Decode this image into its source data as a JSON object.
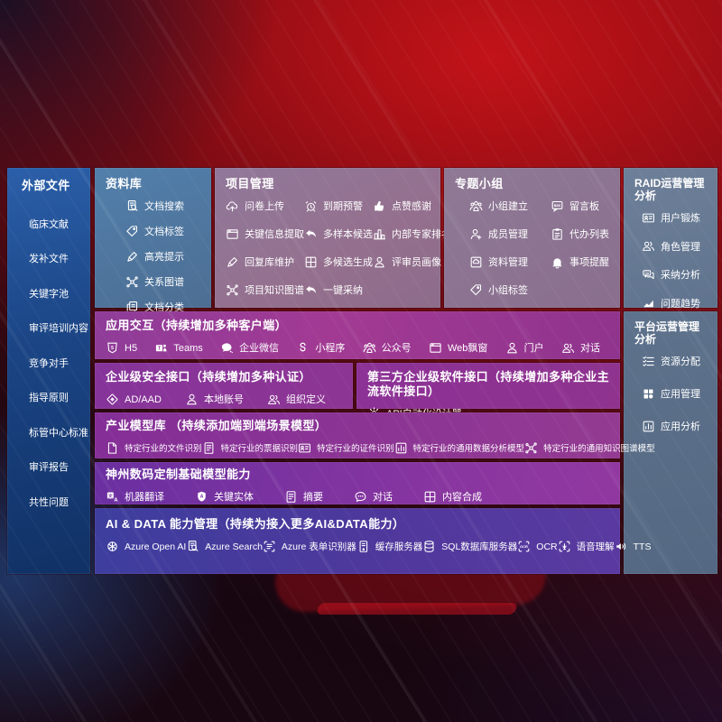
{
  "colors": {
    "background_red": "#a30f16",
    "sidebar_blue": "#1b4585",
    "library_steelblue": "#4f7da9",
    "project_mauve": "#92749a",
    "raid_greyblue": "#66788f",
    "interaction_purple": "#9a3a94",
    "security_purple": "#88349a",
    "industry_purple": "#8a3095",
    "base_models_violet": "#7a32a0",
    "aidata_indigo": "#463a9d",
    "text": "#ffffff"
  },
  "sidebar": {
    "title": "外部文件",
    "items": [
      "临床文献",
      "发补文件",
      "关键字池",
      "审评培训内容",
      "竞争对手",
      "指导原则",
      "标管中心标准",
      "审评报告",
      "共性问题"
    ]
  },
  "library": {
    "title": "资料库",
    "items": [
      {
        "icon": "doc-search",
        "label": "文档搜索"
      },
      {
        "icon": "tag",
        "label": "文档标签"
      },
      {
        "icon": "pen",
        "label": "高亮提示"
      },
      {
        "icon": "network",
        "label": "关系图谱"
      },
      {
        "icon": "copy",
        "label": "文档分类"
      }
    ]
  },
  "project": {
    "title": "项目管理",
    "col1": [
      {
        "icon": "cloud-up",
        "label": "问卷上传"
      },
      {
        "icon": "browser",
        "label": "关键信息提取"
      },
      {
        "icon": "pen",
        "label": "回复库维护"
      },
      {
        "icon": "network",
        "label": "项目知识图谱"
      }
    ],
    "col2": [
      {
        "icon": "alarm",
        "label": "到期预警"
      },
      {
        "icon": "reply",
        "label": "多样本候选"
      },
      {
        "icon": "grid-window",
        "label": "多候选生成"
      },
      {
        "icon": "reply",
        "label": "一键采纳"
      }
    ],
    "col3": [
      {
        "icon": "thumb",
        "label": "点赞感谢"
      },
      {
        "icon": "podium",
        "label": "内部专家排名"
      },
      {
        "icon": "person",
        "label": "评审员画像"
      }
    ]
  },
  "groups": {
    "title": "专题小组",
    "col1": [
      {
        "icon": "people-group",
        "label": "小组建立"
      },
      {
        "icon": "person-add",
        "label": "成员管理"
      },
      {
        "icon": "album",
        "label": "资料管理"
      },
      {
        "icon": "tag",
        "label": "小组标签"
      }
    ],
    "col2": [
      {
        "icon": "bbs",
        "label": "留言板"
      },
      {
        "icon": "clipboard",
        "label": "代办列表"
      },
      {
        "icon": "bell",
        "label": "事项提醒"
      }
    ]
  },
  "raid": {
    "title": "RAID运营管理分析",
    "items": [
      {
        "icon": "idcard",
        "label": "用户锻炼"
      },
      {
        "icon": "people",
        "label": "角色管理"
      },
      {
        "icon": "chat-qa",
        "label": "采纳分析"
      },
      {
        "icon": "trend",
        "label": "问题趋势"
      }
    ]
  },
  "platform": {
    "title": "平台运营管理分析",
    "items": [
      {
        "icon": "list-check",
        "label": "资源分配"
      },
      {
        "icon": "grid-fill",
        "label": "应用管理"
      },
      {
        "icon": "app-chart",
        "label": "应用分析"
      }
    ]
  },
  "interaction": {
    "title": "应用交互（持续增加多种客户端）",
    "items": [
      {
        "icon": "h5",
        "label": "H5"
      },
      {
        "icon": "teams",
        "label": "Teams"
      },
      {
        "icon": "bubble",
        "label": "企业微信"
      },
      {
        "icon": "sprog",
        "label": "小程序"
      },
      {
        "icon": "people-group",
        "label": "公众号"
      },
      {
        "icon": "browser",
        "label": "Web飘窗"
      },
      {
        "icon": "person",
        "label": "门户"
      },
      {
        "icon": "people",
        "label": "对话"
      }
    ]
  },
  "security": {
    "title": "企业级安全接口（持续增加多种认证）",
    "items": [
      {
        "icon": "diamond",
        "label": "AD/AAD"
      },
      {
        "icon": "person",
        "label": "本地账号"
      },
      {
        "icon": "people",
        "label": "组织定义"
      }
    ]
  },
  "thirdparty": {
    "title": "第三方企业级软件接口（持续增加多种企业主流软件接口）",
    "items": [
      {
        "icon": "gear",
        "label": "API自动化设计器"
      }
    ]
  },
  "industry": {
    "title": "产业模型库 （持续添加端到端场景模型）",
    "items": [
      {
        "icon": "file",
        "label": "特定行业的文件识别"
      },
      {
        "icon": "doc-lines",
        "label": "特定行业的票据识别"
      },
      {
        "icon": "idcard",
        "label": "特定行业的证件识别"
      },
      {
        "icon": "app-chart",
        "label": "特定行业的通用数据分析模型"
      },
      {
        "icon": "network",
        "label": "特定行业的通用知识图谱模型"
      }
    ]
  },
  "base_models": {
    "title": "神州数码定制基础模型能力",
    "items": [
      {
        "icon": "translate",
        "label": "机器翻译"
      },
      {
        "icon": "shield-a",
        "label": "关键实体"
      },
      {
        "icon": "doc-lines",
        "label": "摘要"
      },
      {
        "icon": "chat",
        "label": "对话"
      },
      {
        "icon": "grid-window",
        "label": "内容合成"
      }
    ]
  },
  "aidata": {
    "title": "AI & DATA 能力管理（持续为接入更多AI&DATA能力）",
    "items": [
      {
        "icon": "openai",
        "label": "Azure Open AI"
      },
      {
        "icon": "doc-search",
        "label": "Azure Search"
      },
      {
        "icon": "scan-form",
        "label": "Azure 表单识别器"
      },
      {
        "icon": "server",
        "label": "缓存服务器"
      },
      {
        "icon": "database",
        "label": "SQL数据库服务器"
      },
      {
        "icon": "ocr",
        "label": "OCR"
      },
      {
        "icon": "voice",
        "label": "语音理解"
      },
      {
        "icon": "tts",
        "label": "TTS"
      }
    ]
  }
}
